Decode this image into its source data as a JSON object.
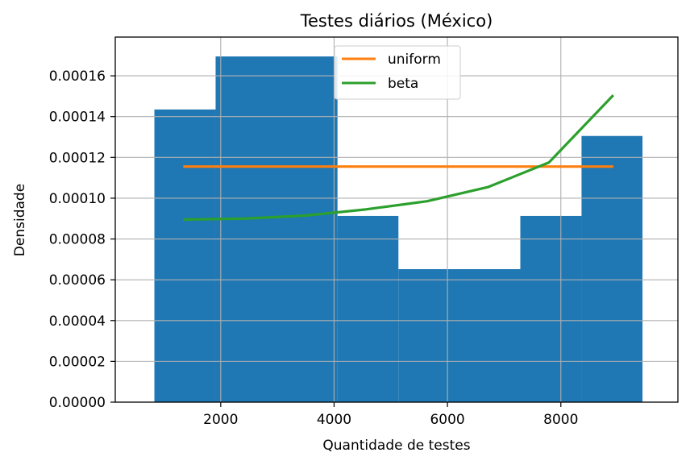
{
  "chart_data": {
    "type": "bar",
    "title": "Testes diários (México)",
    "xlabel": "Quantidade de testes",
    "ylabel": "Densidade",
    "xlim": [
      140,
      10065
    ],
    "ylim": [
      0,
      0.000179
    ],
    "grid": true,
    "legend_position": "top-center",
    "x_ticks": [
      {
        "value": 2000,
        "label": "2000"
      },
      {
        "value": 4000,
        "label": "4000"
      },
      {
        "value": 6000,
        "label": "6000"
      },
      {
        "value": 8000,
        "label": "8000"
      }
    ],
    "y_ticks": [
      {
        "value": 0,
        "label": "0.00000"
      },
      {
        "value": 2e-05,
        "label": "0.00002"
      },
      {
        "value": 4e-05,
        "label": "0.00004"
      },
      {
        "value": 6e-05,
        "label": "0.00006"
      },
      {
        "value": 8e-05,
        "label": "0.00008"
      },
      {
        "value": 0.0001,
        "label": "0.00010"
      },
      {
        "value": 0.00012,
        "label": "0.00012"
      },
      {
        "value": 0.00014,
        "label": "0.00014"
      },
      {
        "value": 0.00016,
        "label": "0.00016"
      }
    ],
    "histogram": {
      "color": "#1f77b4",
      "bins": [
        {
          "x0": 830,
          "x1": 1910,
          "density": 0.0001435
        },
        {
          "x0": 1910,
          "x1": 4060,
          "density": 0.0001695
        },
        {
          "x0": 4060,
          "x1": 5135,
          "density": 9.13e-05
        },
        {
          "x0": 5135,
          "x1": 7285,
          "density": 6.52e-05
        },
        {
          "x0": 7285,
          "x1": 8365,
          "density": 9.13e-05
        },
        {
          "x0": 8365,
          "x1": 9440,
          "density": 0.0001305
        }
      ]
    },
    "series": [
      {
        "name": "uniform",
        "color": "#ff7f0e",
        "x": [
          1340,
          8925
        ],
        "y": [
          0.0001155,
          0.0001155
        ]
      },
      {
        "name": "beta",
        "color": "#2ca02c",
        "x": [
          1340,
          2430,
          3500,
          4560,
          5640,
          6720,
          7790,
          8925
        ],
        "y": [
          8.95e-05,
          9e-05,
          9.15e-05,
          9.45e-05,
          9.85e-05,
          0.0001055,
          0.0001175,
          0.0001505
        ]
      }
    ]
  }
}
